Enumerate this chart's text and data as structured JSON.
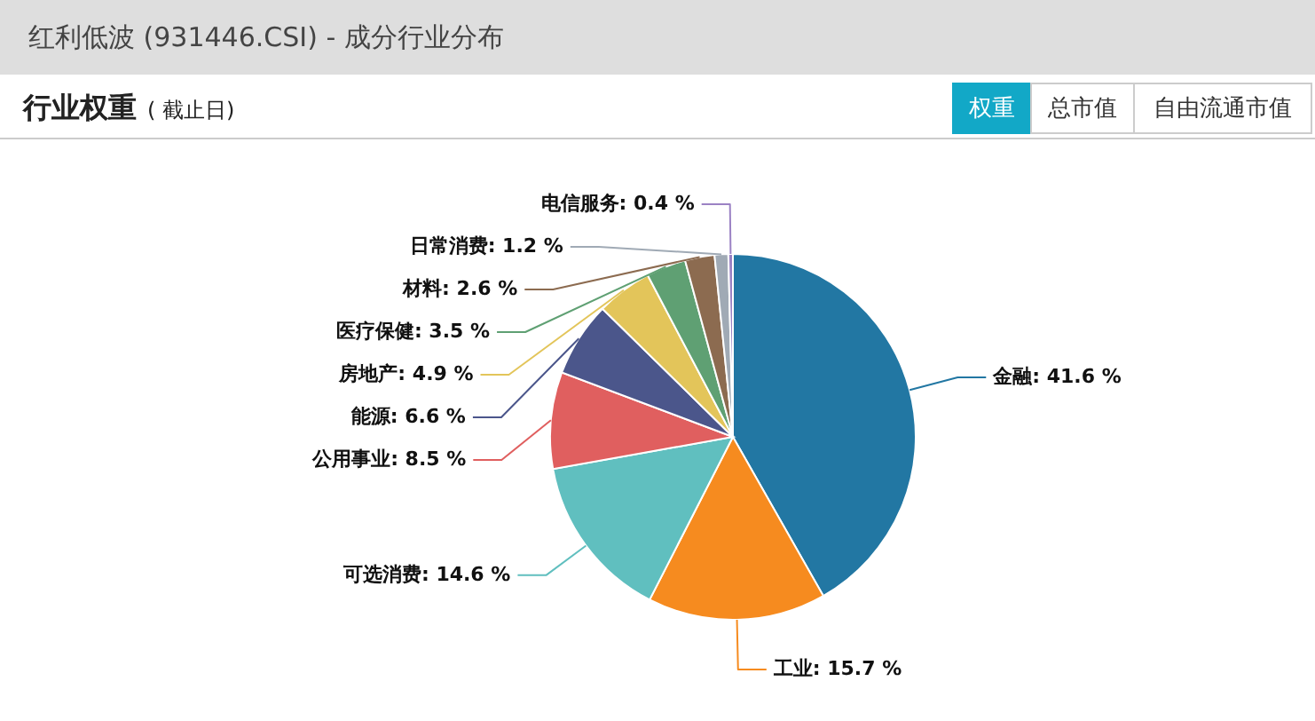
{
  "chart_data": {
    "type": "pie",
    "title": "红利低波 (931446.CSI) - 成分行业分布",
    "subtitle": "行业权重",
    "annotations": [
      "( 截止日)",
      "权重",
      "总市值",
      "自由流通市值"
    ],
    "categories": [
      "金融",
      "工业",
      "可选消费",
      "公用事业",
      "能源",
      "房地产",
      "医疗保健",
      "材料",
      "日常消费",
      "电信服务"
    ],
    "values": [
      41.6,
      15.7,
      14.6,
      8.5,
      6.6,
      4.9,
      3.5,
      2.6,
      1.2,
      0.4
    ],
    "colors": [
      "#2277a3",
      "#f68b1f",
      "#60bfbf",
      "#e05f5f",
      "#4b568b",
      "#e3c55a",
      "#5fa073",
      "#8c6b50",
      "#a0aab5",
      "#9b82c4"
    ],
    "value_labels": [
      "41.6 %",
      "15.7 %",
      "14.6 %",
      "8.5 %",
      "6.6 %",
      "4.9 %",
      "3.5 %",
      "2.6 %",
      "1.2 %",
      "0.4 %"
    ]
  }
}
